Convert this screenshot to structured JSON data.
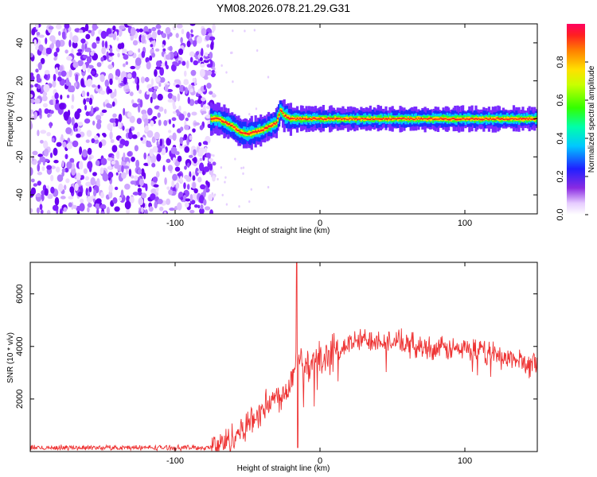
{
  "title": "YM08.2026.078.21.29.G31",
  "colors": {
    "snr_line": "#ee3333",
    "axis": "#000000",
    "background": "#ffffff"
  },
  "chart_data": [
    {
      "type": "heatmap",
      "xlabel": "Height of straight line (km)",
      "ylabel": "Frequency (Hz)",
      "xlim": [
        -200,
        150
      ],
      "ylim": [
        -50,
        50
      ],
      "xticks": [
        -100,
        0,
        100
      ],
      "xtick_labels": [
        "-100",
        "0",
        "100"
      ],
      "yticks": [
        -40,
        -20,
        0,
        20,
        40
      ],
      "ytick_labels": [
        "-40",
        "-20",
        "0",
        "20",
        "40"
      ],
      "colorbar": {
        "label": "Normalized spectral amplitude",
        "range": [
          0,
          1
        ],
        "ticks": [
          0.0,
          0.2,
          0.4,
          0.6,
          0.8
        ],
        "tick_labels": [
          "0.0",
          "0.2",
          "0.4",
          "0.6",
          "0.8"
        ]
      },
      "ridge": {
        "x": [
          -75,
          -70,
          -65,
          -60,
          -55,
          -50,
          -45,
          -40,
          -35,
          -30,
          -27,
          -25,
          -20,
          -10,
          0,
          20,
          50,
          100,
          150
        ],
        "y": [
          0,
          0,
          -2,
          -4,
          -7,
          -8,
          -7,
          -6,
          -4,
          -2,
          5,
          2,
          0,
          0,
          0,
          0,
          0,
          0,
          0
        ]
      },
      "noise_region_x": [
        -200,
        -75
      ]
    },
    {
      "type": "line",
      "xlabel": "Height of straight line (km)",
      "ylabel": "SNR (10 * v/v)",
      "xlim": [
        -200,
        150
      ],
      "ylim": [
        0,
        7200
      ],
      "xticks": [
        -100,
        0,
        100
      ],
      "xtick_labels": [
        "-100",
        "0",
        "100"
      ],
      "yticks": [
        2000,
        4000,
        6000
      ],
      "ytick_labels": [
        "2000",
        "4000",
        "6000"
      ],
      "series": [
        {
          "name": "SNR",
          "x": [
            -200,
            -150,
            -100,
            -75,
            -65,
            -55,
            -45,
            -35,
            -25,
            -20,
            -16,
            -10,
            0,
            10,
            20,
            30,
            40,
            60,
            80,
            100,
            120,
            140,
            150
          ],
          "y": [
            150,
            150,
            150,
            150,
            350,
            800,
            1300,
            1900,
            2200,
            2700,
            4000,
            3200,
            3500,
            3800,
            4100,
            4250,
            4300,
            4100,
            3900,
            3900,
            3700,
            3400,
            3300
          ]
        }
      ],
      "spike": {
        "x": -16,
        "y": 7200
      }
    }
  ]
}
